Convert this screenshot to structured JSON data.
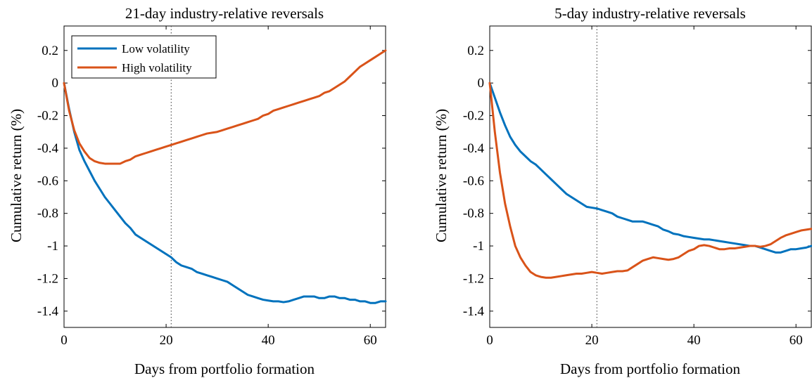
{
  "chart_data": [
    {
      "type": "line",
      "title": "21-day industry-relative reversals",
      "xlabel": "Days from portfolio formation",
      "ylabel": "Cumulative return (%)",
      "xlim": [
        0,
        63
      ],
      "ylim": [
        -1.5,
        0.35
      ],
      "xticks": [
        0,
        20,
        40,
        60
      ],
      "yticks": [
        0.2,
        0,
        -0.2,
        -0.4,
        -0.6,
        -0.8,
        -1,
        -1.2,
        -1.4
      ],
      "xtick_labels": [
        "0",
        "20",
        "40",
        "60"
      ],
      "ytick_labels": [
        "0.2",
        "0",
        "-0.2",
        "-0.4",
        "-0.6",
        "-0.8",
        "-1",
        "-1.2",
        "-1.4"
      ],
      "vline_x": 21,
      "legend": "top-left",
      "series": [
        {
          "name": "Low volatility",
          "color": "#0072BD",
          "x": [
            0,
            1,
            2,
            3,
            4,
            5,
            6,
            7,
            8,
            9,
            10,
            11,
            12,
            13,
            14,
            15,
            16,
            17,
            18,
            19,
            20,
            21,
            22,
            23,
            24,
            25,
            26,
            27,
            28,
            29,
            30,
            31,
            32,
            33,
            34,
            35,
            36,
            37,
            38,
            39,
            40,
            41,
            42,
            43,
            44,
            45,
            46,
            47,
            48,
            49,
            50,
            51,
            52,
            53,
            54,
            55,
            56,
            57,
            58,
            59,
            60,
            61,
            62,
            63
          ],
          "y": [
            0,
            -0.16,
            -0.3,
            -0.41,
            -0.48,
            -0.54,
            -0.6,
            -0.65,
            -0.7,
            -0.74,
            -0.78,
            -0.82,
            -0.86,
            -0.89,
            -0.93,
            -0.95,
            -0.97,
            -0.99,
            -1.01,
            -1.03,
            -1.05,
            -1.07,
            -1.1,
            -1.12,
            -1.13,
            -1.14,
            -1.16,
            -1.17,
            -1.18,
            -1.19,
            -1.2,
            -1.21,
            -1.22,
            -1.24,
            -1.26,
            -1.28,
            -1.3,
            -1.31,
            -1.32,
            -1.33,
            -1.335,
            -1.34,
            -1.34,
            -1.345,
            -1.34,
            -1.33,
            -1.32,
            -1.31,
            -1.31,
            -1.31,
            -1.32,
            -1.32,
            -1.31,
            -1.31,
            -1.32,
            -1.32,
            -1.33,
            -1.33,
            -1.34,
            -1.34,
            -1.35,
            -1.35,
            -1.34,
            -1.34
          ]
        },
        {
          "name": "High volatility",
          "color": "#D95319",
          "x": [
            0,
            1,
            2,
            3,
            4,
            5,
            6,
            7,
            8,
            9,
            10,
            11,
            12,
            13,
            14,
            15,
            16,
            17,
            18,
            19,
            20,
            21,
            22,
            23,
            24,
            25,
            26,
            27,
            28,
            29,
            30,
            31,
            32,
            33,
            34,
            35,
            36,
            37,
            38,
            39,
            40,
            41,
            42,
            43,
            44,
            45,
            46,
            47,
            48,
            49,
            50,
            51,
            52,
            53,
            54,
            55,
            56,
            57,
            58,
            59,
            60,
            61,
            62,
            63
          ],
          "y": [
            0,
            -0.17,
            -0.29,
            -0.37,
            -0.42,
            -0.46,
            -0.48,
            -0.49,
            -0.495,
            -0.495,
            -0.495,
            -0.495,
            -0.48,
            -0.47,
            -0.45,
            -0.44,
            -0.43,
            -0.42,
            -0.41,
            -0.4,
            -0.39,
            -0.38,
            -0.37,
            -0.36,
            -0.35,
            -0.34,
            -0.33,
            -0.32,
            -0.31,
            -0.305,
            -0.3,
            -0.29,
            -0.28,
            -0.27,
            -0.26,
            -0.25,
            -0.24,
            -0.23,
            -0.22,
            -0.2,
            -0.19,
            -0.17,
            -0.16,
            -0.15,
            -0.14,
            -0.13,
            -0.12,
            -0.11,
            -0.1,
            -0.09,
            -0.08,
            -0.06,
            -0.05,
            -0.03,
            -0.01,
            0.01,
            0.04,
            0.07,
            0.1,
            0.12,
            0.14,
            0.16,
            0.18,
            0.2
          ]
        }
      ]
    },
    {
      "type": "line",
      "title": "5-day industry-relative reversals",
      "xlabel": "Days from portfolio formation",
      "ylabel": "Cumulative return (%)",
      "xlim": [
        0,
        63
      ],
      "ylim": [
        -1.5,
        0.35
      ],
      "xticks": [
        0,
        20,
        40,
        60
      ],
      "yticks": [
        0.2,
        0,
        -0.2,
        -0.4,
        -0.6,
        -0.8,
        -1,
        -1.2,
        -1.4
      ],
      "xtick_labels": [
        "0",
        "20",
        "40",
        "60"
      ],
      "ytick_labels": [
        "0.2",
        "0",
        "-0.2",
        "-0.4",
        "-0.6",
        "-0.8",
        "-1",
        "-1.2",
        "-1.4"
      ],
      "vline_x": 21,
      "series": [
        {
          "name": "Low volatility",
          "color": "#0072BD",
          "x": [
            0,
            1,
            2,
            3,
            4,
            5,
            6,
            7,
            8,
            9,
            10,
            11,
            12,
            13,
            14,
            15,
            16,
            17,
            18,
            19,
            20,
            21,
            22,
            23,
            24,
            25,
            26,
            27,
            28,
            29,
            30,
            31,
            32,
            33,
            34,
            35,
            36,
            37,
            38,
            39,
            40,
            41,
            42,
            43,
            44,
            45,
            46,
            47,
            48,
            49,
            50,
            51,
            52,
            53,
            54,
            55,
            56,
            57,
            58,
            59,
            60,
            61,
            62,
            63
          ],
          "y": [
            0,
            -0.09,
            -0.18,
            -0.26,
            -0.33,
            -0.38,
            -0.42,
            -0.45,
            -0.48,
            -0.5,
            -0.53,
            -0.56,
            -0.59,
            -0.62,
            -0.65,
            -0.68,
            -0.7,
            -0.72,
            -0.74,
            -0.76,
            -0.765,
            -0.77,
            -0.78,
            -0.79,
            -0.8,
            -0.82,
            -0.83,
            -0.84,
            -0.85,
            -0.85,
            -0.85,
            -0.86,
            -0.87,
            -0.88,
            -0.9,
            -0.91,
            -0.925,
            -0.93,
            -0.94,
            -0.945,
            -0.95,
            -0.955,
            -0.96,
            -0.96,
            -0.965,
            -0.97,
            -0.975,
            -0.98,
            -0.985,
            -0.99,
            -0.995,
            -1.0,
            -1.0,
            -1.01,
            -1.02,
            -1.03,
            -1.04,
            -1.04,
            -1.03,
            -1.02,
            -1.02,
            -1.015,
            -1.01,
            -1.0
          ]
        },
        {
          "name": "High volatility",
          "color": "#D95319",
          "x": [
            0,
            1,
            2,
            3,
            4,
            5,
            6,
            7,
            8,
            9,
            10,
            11,
            12,
            13,
            14,
            15,
            16,
            17,
            18,
            19,
            20,
            21,
            22,
            23,
            24,
            25,
            26,
            27,
            28,
            29,
            30,
            31,
            32,
            33,
            34,
            35,
            36,
            37,
            38,
            39,
            40,
            41,
            42,
            43,
            44,
            45,
            46,
            47,
            48,
            49,
            50,
            51,
            52,
            53,
            54,
            55,
            56,
            57,
            58,
            59,
            60,
            61,
            62,
            63
          ],
          "y": [
            0,
            -0.3,
            -0.55,
            -0.74,
            -0.88,
            -1.0,
            -1.07,
            -1.12,
            -1.16,
            -1.18,
            -1.19,
            -1.195,
            -1.195,
            -1.19,
            -1.185,
            -1.18,
            -1.175,
            -1.17,
            -1.17,
            -1.165,
            -1.16,
            -1.165,
            -1.17,
            -1.165,
            -1.16,
            -1.155,
            -1.155,
            -1.15,
            -1.13,
            -1.11,
            -1.09,
            -1.08,
            -1.07,
            -1.075,
            -1.08,
            -1.085,
            -1.08,
            -1.07,
            -1.05,
            -1.03,
            -1.02,
            -1.0,
            -0.995,
            -1.0,
            -1.01,
            -1.02,
            -1.02,
            -1.015,
            -1.015,
            -1.01,
            -1.005,
            -1.0,
            -1.0,
            -1.005,
            -1.0,
            -0.99,
            -0.97,
            -0.95,
            -0.935,
            -0.925,
            -0.915,
            -0.905,
            -0.9,
            -0.895
          ]
        }
      ]
    }
  ]
}
